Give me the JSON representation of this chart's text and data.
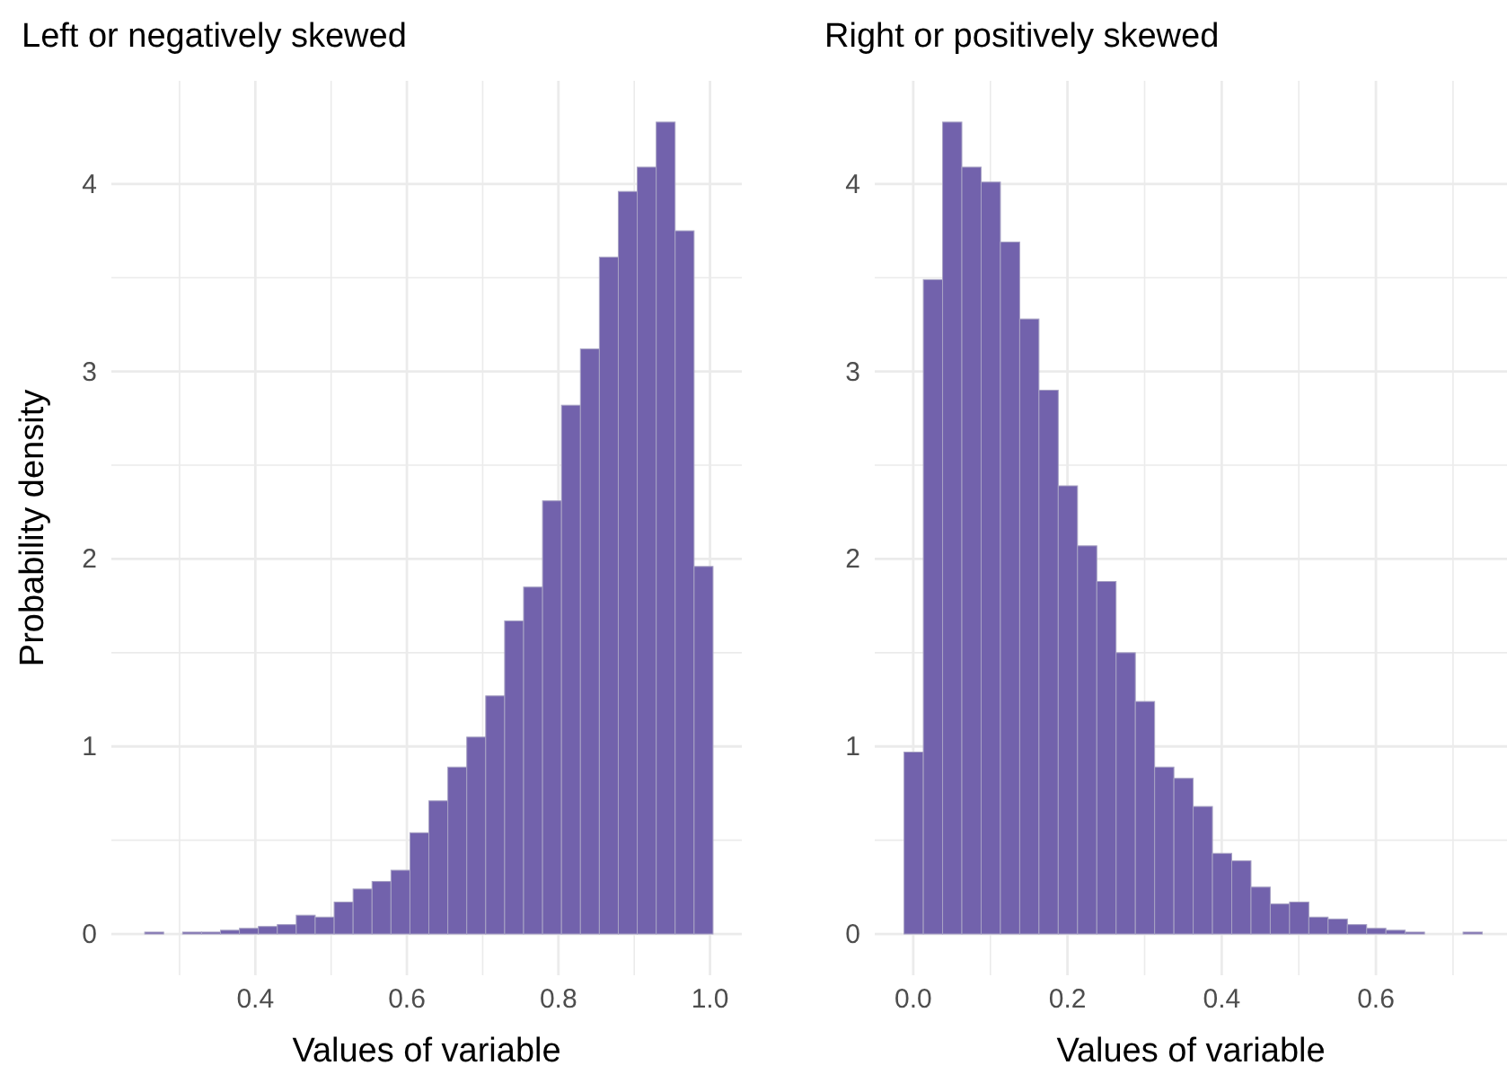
{
  "chart_data": [
    {
      "type": "histogram",
      "title": "Left or negatively skewed",
      "xlabel": "Values of variable",
      "ylabel": "Probability density",
      "color": "#7262ac",
      "grid": true,
      "bins": [
        0.254,
        0.279,
        0.304,
        0.329,
        0.354,
        0.379,
        0.404,
        0.429,
        0.454,
        0.479,
        0.504,
        0.529,
        0.554,
        0.579,
        0.604,
        0.629,
        0.654,
        0.679,
        0.704,
        0.729,
        0.754,
        0.779,
        0.804,
        0.829,
        0.854,
        0.879,
        0.904,
        0.929,
        0.954,
        0.979,
        1.004
      ],
      "values": [
        0.01,
        0,
        0.01,
        0.01,
        0.02,
        0.03,
        0.04,
        0.05,
        0.1,
        0.09,
        0.17,
        0.24,
        0.28,
        0.34,
        0.54,
        0.71,
        0.89,
        1.05,
        1.27,
        1.67,
        1.85,
        2.31,
        2.82,
        3.12,
        3.61,
        3.96,
        4.09,
        4.33,
        3.75,
        1.96
      ],
      "xlim": [
        0.21,
        1.042
      ],
      "xticks": [
        {
          "value": 0.3,
          "label": null
        },
        0.4,
        {
          "value": 0.5,
          "label": null
        },
        0.6,
        {
          "value": 0.7,
          "label": null
        },
        0.8,
        {
          "value": 0.9,
          "label": null
        },
        {
          "value": 1,
          "label": "1.0"
        }
      ],
      "ylim": [
        -0.22,
        4.55
      ],
      "yticks": [
        0,
        {
          "value": 0.5,
          "label": null
        },
        1,
        {
          "value": 1.5,
          "label": null
        },
        2,
        {
          "value": 2.5,
          "label": null
        },
        3,
        {
          "value": 3.5,
          "label": null
        },
        4
      ]
    },
    {
      "type": "histogram",
      "title": "Right or positively skewed",
      "xlabel": "Values of variable",
      "color": "#7262ac",
      "grid": true,
      "bins": [
        -0.012,
        0.013,
        0.038,
        0.063,
        0.088,
        0.113,
        0.138,
        0.163,
        0.188,
        0.213,
        0.238,
        0.263,
        0.288,
        0.313,
        0.338,
        0.363,
        0.388,
        0.413,
        0.438,
        0.463,
        0.488,
        0.513,
        0.538,
        0.563,
        0.588,
        0.613,
        0.638,
        0.663,
        0.688,
        0.713,
        0.738
      ],
      "values": [
        0.97,
        3.49,
        4.33,
        4.09,
        4.01,
        3.69,
        3.28,
        2.9,
        2.39,
        2.07,
        1.88,
        1.5,
        1.24,
        0.89,
        0.83,
        0.68,
        0.43,
        0.39,
        0.25,
        0.16,
        0.17,
        0.09,
        0.08,
        0.05,
        0.03,
        0.02,
        0.01,
        0,
        0,
        0.01
      ],
      "xlim": [
        -0.05,
        0.77
      ],
      "xticks": [
        {
          "value": 0,
          "label": "0.0"
        },
        {
          "value": 0.1,
          "label": null
        },
        0.2,
        {
          "value": 0.3,
          "label": null
        },
        0.4,
        {
          "value": 0.5,
          "label": null
        },
        0.6,
        {
          "value": 0.7,
          "label": null
        }
      ],
      "ylim": [
        -0.22,
        4.55
      ],
      "yticks": [
        0,
        {
          "value": 0.5,
          "label": null
        },
        1,
        {
          "value": 1.5,
          "label": null
        },
        2,
        {
          "value": 2.5,
          "label": null
        },
        3,
        {
          "value": 3.5,
          "label": null
        },
        4
      ]
    }
  ]
}
